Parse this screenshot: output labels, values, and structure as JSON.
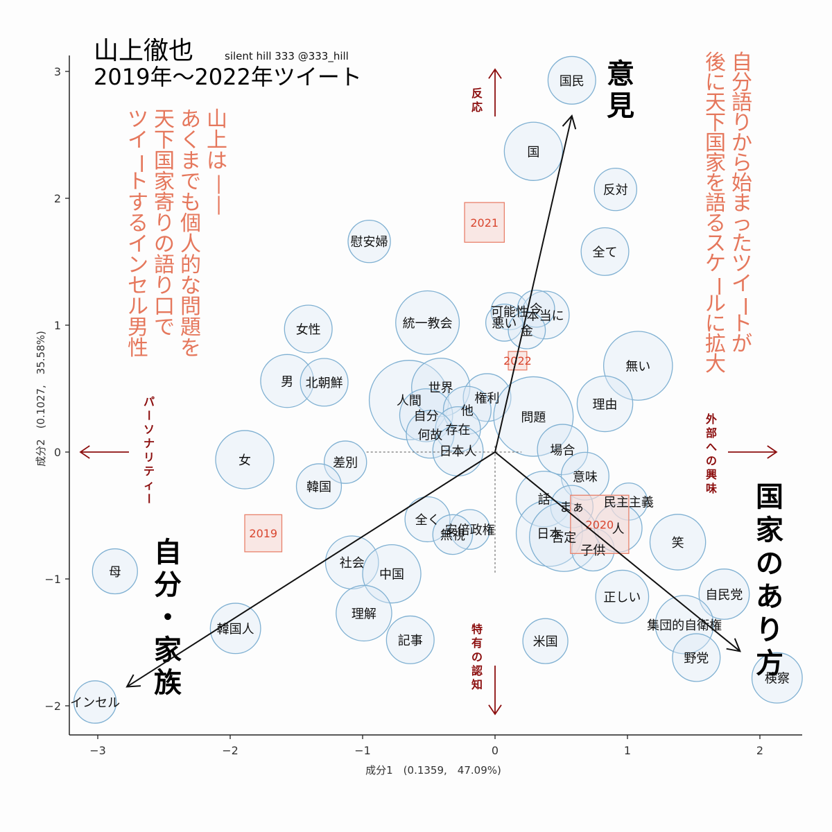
{
  "chart_data": {
    "type": "scatter",
    "title": "山上徹也",
    "subtitle": "2019年〜2022年ツイート",
    "credit": "silent hill 333 @333_hill",
    "xlabel": "成分1　(0.1359,　47.09%)",
    "ylabel": "成分2　(0.1027,　35.58%)",
    "xlim": [
      -3.3,
      2.3
    ],
    "ylim": [
      -2.2,
      3.15
    ],
    "xticks": [
      -3,
      -2,
      -1,
      0,
      1,
      2
    ],
    "yticks": [
      -2,
      -1,
      0,
      1,
      2,
      3
    ],
    "xtick_labels": [
      "−3",
      "−2",
      "−1",
      "0",
      "1",
      "2"
    ],
    "ytick_labels": [
      "−2",
      "−1",
      "0",
      "1",
      "2",
      "3"
    ],
    "words": [
      {
        "label": "国民",
        "x": 0.58,
        "y": 2.93,
        "r": 0.18
      },
      {
        "label": "国",
        "x": 0.29,
        "y": 2.37,
        "r": 0.22
      },
      {
        "label": "反対",
        "x": 0.91,
        "y": 2.07,
        "r": 0.16
      },
      {
        "label": "全て",
        "x": 0.83,
        "y": 1.58,
        "r": 0.18
      },
      {
        "label": "慰安婦",
        "x": -0.95,
        "y": 1.66,
        "r": 0.16
      },
      {
        "label": "可能性",
        "x": 0.11,
        "y": 1.11,
        "r": 0.14
      },
      {
        "label": "本当に",
        "x": 0.38,
        "y": 1.08,
        "r": 0.18
      },
      {
        "label": "今",
        "x": 0.31,
        "y": 1.13,
        "r": 0.14
      },
      {
        "label": "悪い",
        "x": 0.07,
        "y": 1.02,
        "r": 0.14
      },
      {
        "label": "金",
        "x": 0.24,
        "y": 0.96,
        "r": 0.14
      },
      {
        "label": "統一教会",
        "x": -0.51,
        "y": 1.02,
        "r": 0.24
      },
      {
        "label": "女性",
        "x": -1.41,
        "y": 0.97,
        "r": 0.18
      },
      {
        "label": "無い",
        "x": 1.08,
        "y": 0.68,
        "r": 0.26
      },
      {
        "label": "理由",
        "x": 0.83,
        "y": 0.38,
        "r": 0.21
      },
      {
        "label": "男",
        "x": -1.57,
        "y": 0.56,
        "r": 0.2
      },
      {
        "label": "北朝鮮",
        "x": -1.29,
        "y": 0.55,
        "r": 0.18
      },
      {
        "label": "人間",
        "x": -0.65,
        "y": 0.41,
        "r": 0.3
      },
      {
        "label": "世界",
        "x": -0.41,
        "y": 0.51,
        "r": 0.22
      },
      {
        "label": "権利",
        "x": -0.06,
        "y": 0.43,
        "r": 0.18
      },
      {
        "label": "問題",
        "x": 0.29,
        "y": 0.28,
        "r": 0.3
      },
      {
        "label": "自分",
        "x": -0.52,
        "y": 0.29,
        "r": 0.2
      },
      {
        "label": "他",
        "x": -0.21,
        "y": 0.33,
        "r": 0.18
      },
      {
        "label": "存在",
        "x": -0.28,
        "y": 0.18,
        "r": 0.17
      },
      {
        "label": "何故",
        "x": -0.49,
        "y": 0.14,
        "r": 0.18
      },
      {
        "label": "日本人",
        "x": -0.28,
        "y": 0.01,
        "r": 0.19
      },
      {
        "label": "場合",
        "x": 0.51,
        "y": 0.02,
        "r": 0.19
      },
      {
        "label": "女",
        "x": -1.89,
        "y": -0.06,
        "r": 0.22
      },
      {
        "label": "差別",
        "x": -1.13,
        "y": -0.08,
        "r": 0.16
      },
      {
        "label": "韓国",
        "x": -1.33,
        "y": -0.27,
        "r": 0.17
      },
      {
        "label": "意味",
        "x": 0.68,
        "y": -0.19,
        "r": 0.18
      },
      {
        "label": "話",
        "x": 0.37,
        "y": -0.37,
        "r": 0.21
      },
      {
        "label": "まぁ",
        "x": 0.58,
        "y": -0.43,
        "r": 0.16
      },
      {
        "label": "民主主義",
        "x": 1.01,
        "y": -0.39,
        "r": 0.14
      },
      {
        "label": "全く",
        "x": -0.51,
        "y": -0.53,
        "r": 0.17
      },
      {
        "label": "安倍政権",
        "x": -0.19,
        "y": -0.61,
        "r": 0.15
      },
      {
        "label": "無視",
        "x": -0.32,
        "y": -0.65,
        "r": 0.15
      },
      {
        "label": "日本",
        "x": 0.41,
        "y": -0.64,
        "r": 0.25
      },
      {
        "label": "否定",
        "x": 0.52,
        "y": -0.67,
        "r": 0.26
      },
      {
        "label": "子供",
        "x": 0.74,
        "y": -0.77,
        "r": 0.16
      },
      {
        "label": "人",
        "x": 0.93,
        "y": -0.6,
        "r": 0.18
      },
      {
        "label": "笑",
        "x": 1.38,
        "y": -0.71,
        "r": 0.21
      },
      {
        "label": "母",
        "x": -2.87,
        "y": -0.94,
        "r": 0.17
      },
      {
        "label": "社会",
        "x": -1.08,
        "y": -0.87,
        "r": 0.2
      },
      {
        "label": "中国",
        "x": -0.78,
        "y": -0.96,
        "r": 0.22
      },
      {
        "label": "正しい",
        "x": 0.96,
        "y": -1.14,
        "r": 0.2
      },
      {
        "label": "自民党",
        "x": 1.73,
        "y": -1.12,
        "r": 0.19
      },
      {
        "label": "理解",
        "x": -0.99,
        "y": -1.27,
        "r": 0.21
      },
      {
        "label": "韓国人",
        "x": -1.96,
        "y": -1.39,
        "r": 0.19
      },
      {
        "label": "記事",
        "x": -0.64,
        "y": -1.48,
        "r": 0.18
      },
      {
        "label": "米国",
        "x": 0.38,
        "y": -1.49,
        "r": 0.17
      },
      {
        "label": "集団的自衛権",
        "x": 1.43,
        "y": -1.36,
        "r": 0.22
      },
      {
        "label": "野党",
        "x": 1.52,
        "y": -1.62,
        "r": 0.18
      },
      {
        "label": "検察",
        "x": 2.13,
        "y": -1.78,
        "r": 0.19
      },
      {
        "label": "インセル",
        "x": -3.02,
        "y": -1.97,
        "r": 0.16
      }
    ],
    "years": [
      {
        "label": "2019",
        "x": -1.75,
        "y": -0.64
      },
      {
        "label": "2020",
        "x": 0.79,
        "y": -0.57
      },
      {
        "label": "2021",
        "x": -0.08,
        "y": 1.81
      },
      {
        "label": "2022",
        "x": 0.17,
        "y": 0.72
      }
    ],
    "year_box_sizes": {
      "2019": 0.28,
      "2020": 0.44,
      "2021": 0.3,
      "2022": 0.14
    },
    "arrows": [
      {
        "label": "意見",
        "x": 0.58,
        "y": 2.65
      },
      {
        "label": "国家のあり方",
        "x": 1.85,
        "y": -1.57
      },
      {
        "label": "自分・家族",
        "x": -2.78,
        "y": -1.85
      }
    ],
    "annotations": {
      "left_orange": [
        "山上は",
        "あくまでも個人的な問題を",
        "天下国家寄りの語り口で",
        "ツイートするインセル男性"
      ],
      "right_orange": [
        "自分語りから始まったツイートが",
        "後に天下国家を語るスケールに拡大"
      ],
      "top_arrow_label": "反応",
      "bottom_arrow_label": "特有の認知",
      "left_arrow_label": "パーソナリティー",
      "right_arrow_label": "外部への興味"
    },
    "colors": {
      "bubble_fill": "#dbe9f6",
      "bubble_stroke": "#7fb0d2",
      "year_fill": "#f7d9d3",
      "year_stroke": "#e8806a",
      "orange_text": "#e5775c",
      "dark_red": "#8b0d0d"
    }
  }
}
